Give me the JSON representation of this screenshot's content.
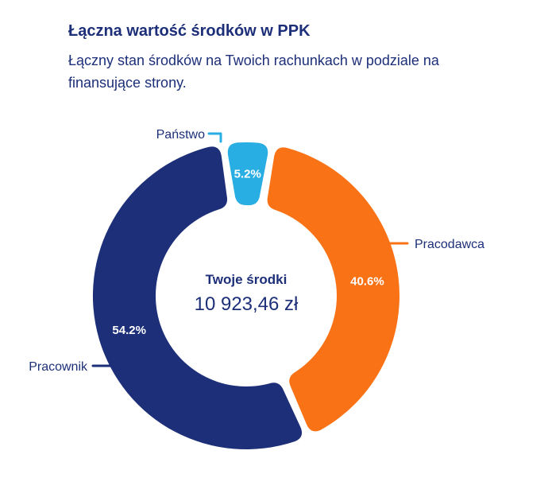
{
  "header": {
    "title": "Łączna wartość środków w PPK",
    "subtitle": "Łączny stan środków na Twoich rachunkach w podziale na finansujące strony."
  },
  "chart_data": {
    "type": "pie",
    "center": {
      "title": "Twoje środki",
      "value": "10 923,46 zł"
    },
    "slices": [
      {
        "name": "Pracodawca",
        "value": 40.6,
        "label": "40.6%",
        "color": "#f97316"
      },
      {
        "name": "Pracownik",
        "value": 54.2,
        "label": "54.2%",
        "color": "#1c2f78"
      },
      {
        "name": "Państwo",
        "value": 5.2,
        "label": "5.2%",
        "color": "#29aee4"
      }
    ]
  }
}
